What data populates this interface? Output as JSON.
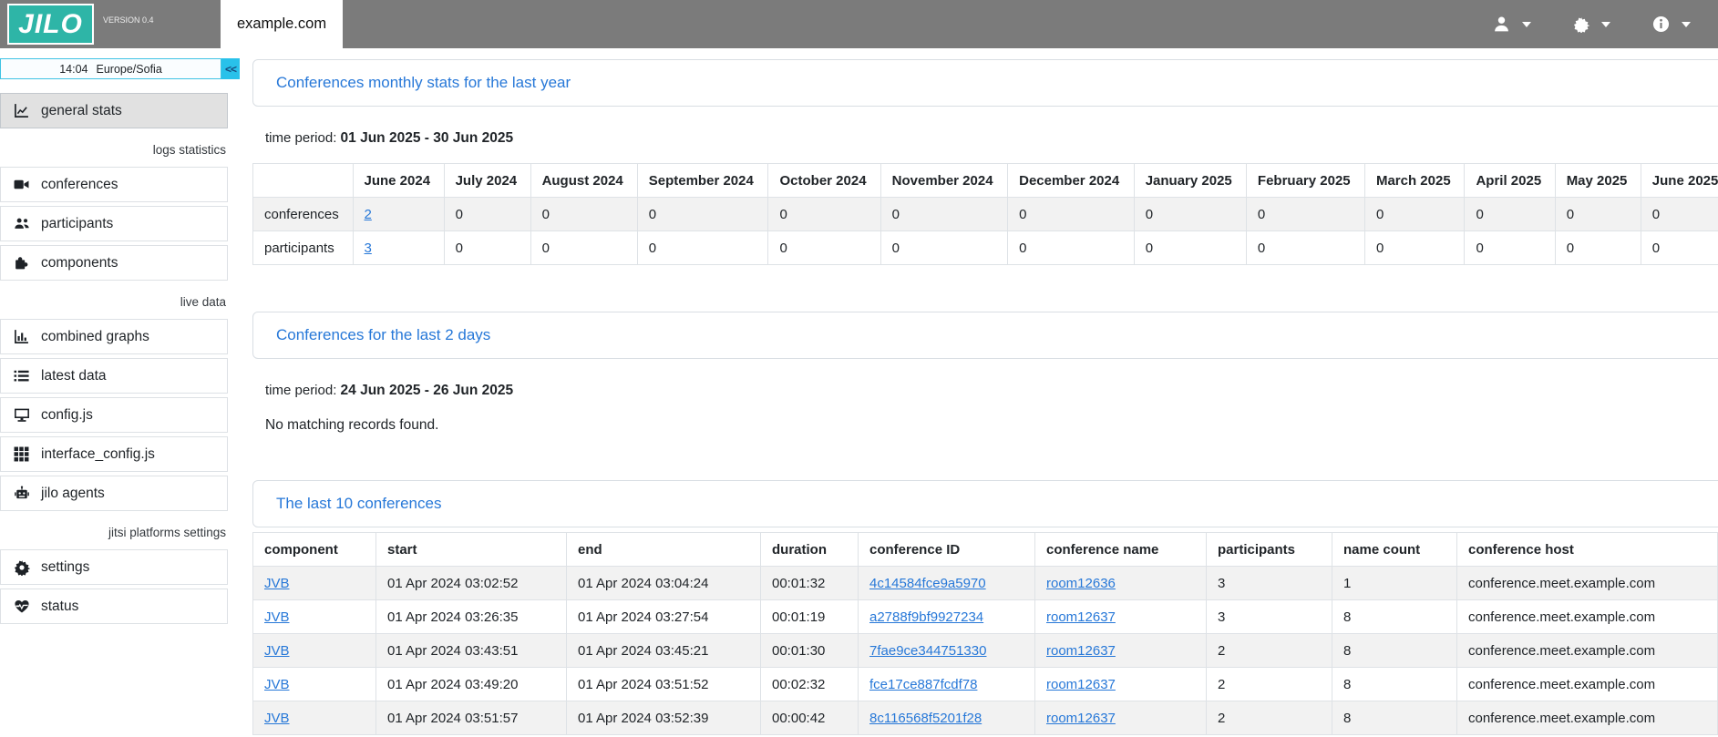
{
  "colors": {
    "brand_teal": "#2eb5a7",
    "topbar_gray": "#7b7b7b",
    "link_blue": "#2778d8",
    "clock_cyan": "#29c1ea",
    "stripe_gray": "#f2f2f2"
  },
  "topbar": {
    "logo": "JILO",
    "version": "VERSION 0.4",
    "tab": "example.com",
    "menus": [
      {
        "icon": "user-icon"
      },
      {
        "icon": "gear-icon"
      },
      {
        "icon": "info-icon"
      }
    ]
  },
  "sidebar": {
    "clock": {
      "time": "14:04",
      "timezone": "Europe/Sofia",
      "collapse_label": "<<"
    },
    "items": [
      {
        "type": "item",
        "label": "general stats",
        "icon": "chart-line-icon",
        "active": true
      },
      {
        "type": "section",
        "label": "logs statistics"
      },
      {
        "type": "item",
        "label": "conferences",
        "icon": "video-icon"
      },
      {
        "type": "item",
        "label": "participants",
        "icon": "users-icon"
      },
      {
        "type": "item",
        "label": "components",
        "icon": "puzzle-icon"
      },
      {
        "type": "section",
        "label": "live data"
      },
      {
        "type": "item",
        "label": "combined graphs",
        "icon": "bar-chart-icon"
      },
      {
        "type": "item",
        "label": "latest data",
        "icon": "list-icon"
      },
      {
        "type": "item",
        "label": "config.js",
        "icon": "monitor-icon"
      },
      {
        "type": "item",
        "label": "interface_config.js",
        "icon": "grid-icon"
      },
      {
        "type": "item",
        "label": "jilo agents",
        "icon": "robot-icon"
      },
      {
        "type": "section",
        "label": "jitsi platforms settings"
      },
      {
        "type": "item",
        "label": "settings",
        "icon": "gear-icon"
      },
      {
        "type": "item",
        "label": "status",
        "icon": "heart-pulse-icon"
      }
    ]
  },
  "card_monthly": {
    "title": "Conferences monthly stats for the last year",
    "time_period_label": "time period:",
    "time_period": "01 Jun 2025 - 30 Jun 2025"
  },
  "monthly_table": {
    "headers": [
      "",
      "June 2024",
      "July 2024",
      "August 2024",
      "September 2024",
      "October 2024",
      "November 2024",
      "December 2024",
      "January 2025",
      "February 2025",
      "March 2025",
      "April 2025",
      "May 2025",
      "June 2025"
    ],
    "rows": [
      {
        "label": "conferences",
        "linked_value": "2",
        "values": [
          "0",
          "0",
          "0",
          "0",
          "0",
          "0",
          "0",
          "0",
          "0",
          "0",
          "0",
          "0"
        ]
      },
      {
        "label": "participants",
        "linked_value": "3",
        "values": [
          "0",
          "0",
          "0",
          "0",
          "0",
          "0",
          "0",
          "0",
          "0",
          "0",
          "0",
          "0"
        ]
      }
    ]
  },
  "card_two_days": {
    "title": "Conferences for the last 2 days",
    "time_period_label": "time period:",
    "time_period": "24 Jun 2025 - 26 Jun 2025",
    "empty_message": "No matching records found."
  },
  "card_last10": {
    "title": "The last 10 conferences"
  },
  "conference_table": {
    "headers": [
      "component",
      "start",
      "end",
      "duration",
      "conference ID",
      "conference name",
      "participants",
      "name count",
      "conference host"
    ],
    "rows": [
      [
        "JVB",
        "01 Apr 2024 03:02:52",
        "01 Apr 2024 03:04:24",
        "00:01:32",
        "4c14584fce9a5970",
        "room12636",
        "3",
        "1",
        "conference.meet.example.com"
      ],
      [
        "JVB",
        "01 Apr 2024 03:26:35",
        "01 Apr 2024 03:27:54",
        "00:01:19",
        "a2788f9bf9927234",
        "room12637",
        "3",
        "8",
        "conference.meet.example.com"
      ],
      [
        "JVB",
        "01 Apr 2024 03:43:51",
        "01 Apr 2024 03:45:21",
        "00:01:30",
        "7fae9ce344751330",
        "room12637",
        "2",
        "8",
        "conference.meet.example.com"
      ],
      [
        "JVB",
        "01 Apr 2024 03:49:20",
        "01 Apr 2024 03:51:52",
        "00:02:32",
        "fce17ce887fcdf78",
        "room12637",
        "2",
        "8",
        "conference.meet.example.com"
      ],
      [
        "JVB",
        "01 Apr 2024 03:51:57",
        "01 Apr 2024 03:52:39",
        "00:00:42",
        "8c116568f5201f28",
        "room12637",
        "2",
        "8",
        "conference.meet.example.com"
      ]
    ]
  }
}
